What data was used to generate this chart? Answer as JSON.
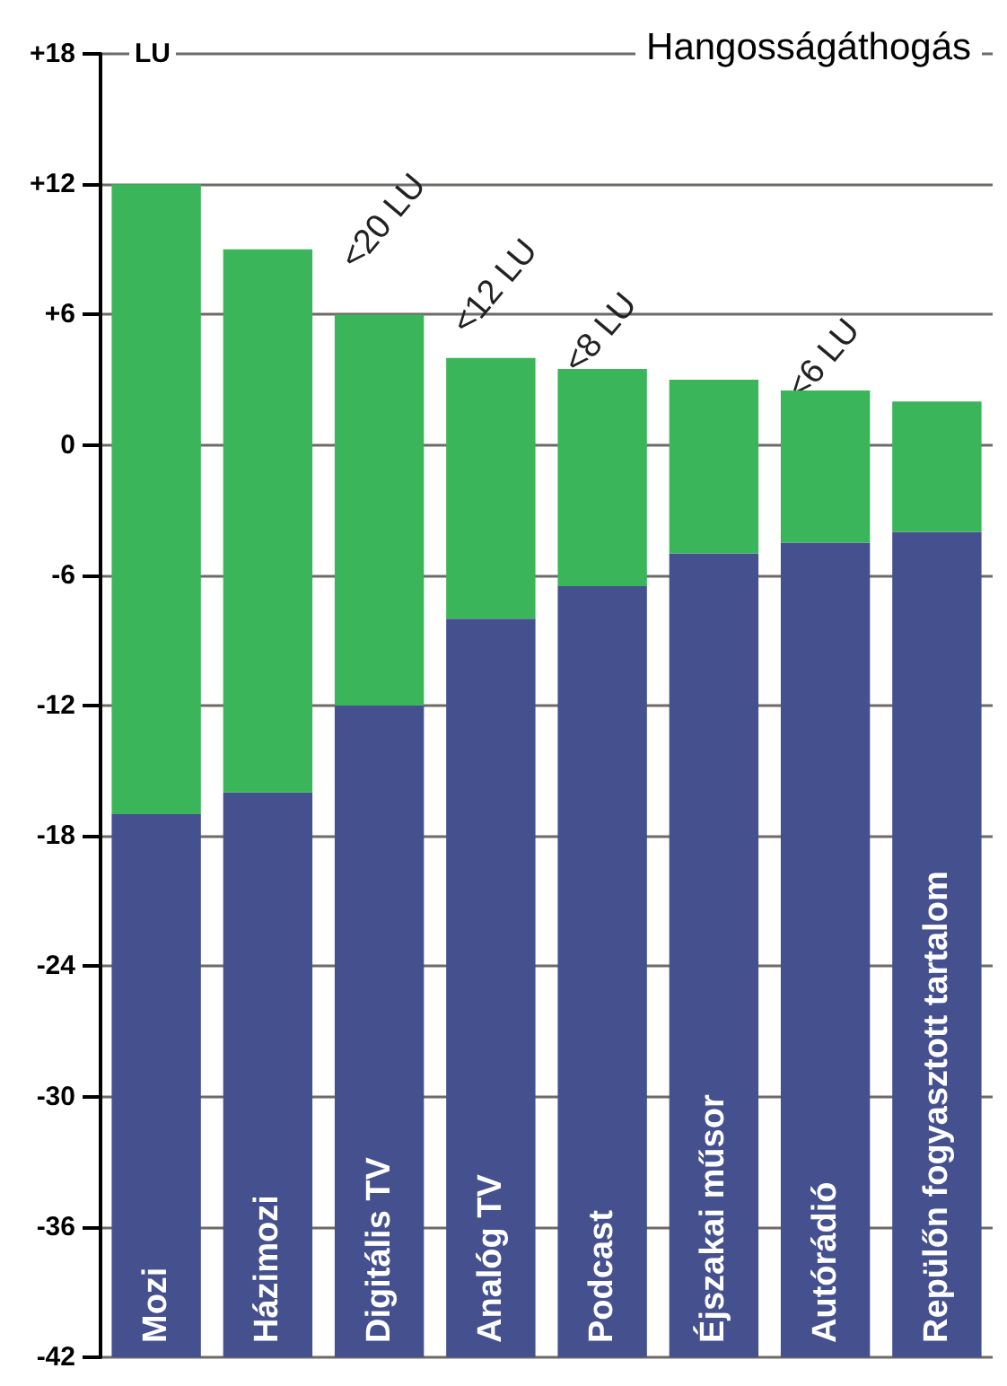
{
  "chart_data": {
    "type": "bar",
    "title": "Hangosságáthogás",
    "ylabel": "LU",
    "categories": [
      "Mozi",
      "Házimozi",
      "Digitális TV",
      "Analóg TV",
      "Podcast",
      "Éjszakai műsor",
      "Autórádió",
      "Repülőn fogyasztott tartalom"
    ],
    "series": [
      {
        "color": "#45508f",
        "base": [
          -42,
          -42,
          -42,
          -42,
          -42,
          -42,
          -42,
          -42
        ],
        "values": [
          25,
          26,
          30,
          34,
          35.5,
          37,
          37.5,
          38
        ]
      },
      {
        "color": "#3bb55a",
        "base": [
          -17,
          -16,
          -12,
          -8,
          -6.5,
          -5,
          -4.5,
          -4
        ],
        "values": [
          29,
          25,
          18,
          12,
          10,
          8,
          7,
          6
        ]
      }
    ],
    "ylim": [
      -42,
      18
    ],
    "yticks": [
      {
        "value": 18,
        "label": "+18"
      },
      {
        "value": 12,
        "label": "+12"
      },
      {
        "value": 6,
        "label": "+6"
      },
      0,
      -6,
      -12,
      -18,
      -24,
      -30,
      -36,
      -42
    ],
    "grid": "y",
    "annotations": [
      "<20 LU",
      "<12 LU",
      "<8 LU",
      "<6 LU"
    ]
  }
}
